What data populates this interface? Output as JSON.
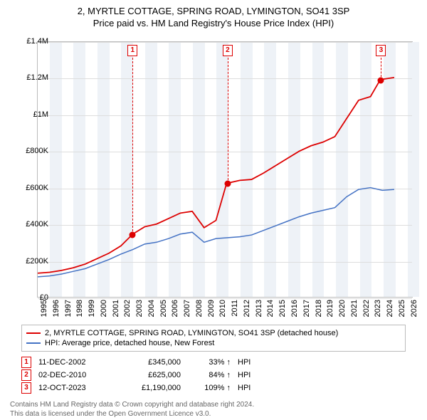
{
  "title": {
    "line1": "2, MYRTLE COTTAGE, SPRING ROAD, LYMINGTON, SO41 3SP",
    "line2": "Price paid vs. HM Land Registry's House Price Index (HPI)",
    "fontsize": 13,
    "color": "#000000"
  },
  "chart": {
    "type": "line",
    "background_color": "#ffffff",
    "band_color": "#eef2f7",
    "grid_color": "#dddddd",
    "border_color": "#bbbbbb",
    "xlim": [
      1995,
      2026.5
    ],
    "ylim": [
      0,
      1400000
    ],
    "yticks": [
      0,
      200000,
      400000,
      600000,
      800000,
      1000000,
      1200000,
      1400000
    ],
    "ytick_labels": [
      "£0",
      "£200K",
      "£400K",
      "£600K",
      "£800K",
      "£1M",
      "£1.2M",
      "£1.4M"
    ],
    "xticks": [
      1995,
      1996,
      1997,
      1998,
      1999,
      2000,
      2001,
      2002,
      2003,
      2004,
      2005,
      2006,
      2007,
      2008,
      2009,
      2010,
      2011,
      2012,
      2013,
      2014,
      2015,
      2016,
      2017,
      2018,
      2019,
      2020,
      2021,
      2022,
      2023,
      2024,
      2025,
      2026
    ],
    "label_fontsize": 11,
    "series": [
      {
        "name": "property",
        "label": "2, MYRTLE COTTAGE, SPRING ROAD, LYMINGTON, SO41 3SP (detached house)",
        "color": "#dd0000",
        "line_width": 1.8,
        "x": [
          1995,
          1996,
          1997,
          1998,
          1999,
          2000,
          2001,
          2002,
          2003,
          2004,
          2005,
          2006,
          2007,
          2008,
          2009,
          2010,
          2010.9,
          2011,
          2012,
          2013,
          2014,
          2015,
          2016,
          2017,
          2018,
          2019,
          2020,
          2021,
          2022,
          2023,
          2023.8,
          2024,
          2025
        ],
        "y": [
          130000,
          135000,
          145000,
          160000,
          180000,
          210000,
          240000,
          280000,
          345000,
          385000,
          400000,
          430000,
          460000,
          470000,
          380000,
          420000,
          625000,
          625000,
          640000,
          645000,
          680000,
          720000,
          760000,
          800000,
          830000,
          850000,
          880000,
          980000,
          1080000,
          1100000,
          1190000,
          1195000,
          1205000
        ]
      },
      {
        "name": "hpi",
        "label": "HPI: Average price, detached house, New Forest",
        "color": "#4472c4",
        "line_width": 1.5,
        "x": [
          1995,
          1996,
          1997,
          1998,
          1999,
          2000,
          2001,
          2002,
          2003,
          2004,
          2005,
          2006,
          2007,
          2008,
          2009,
          2010,
          2011,
          2012,
          2013,
          2014,
          2015,
          2016,
          2017,
          2018,
          2019,
          2020,
          2021,
          2022,
          2023,
          2024,
          2025
        ],
        "y": [
          110000,
          115000,
          125000,
          140000,
          155000,
          180000,
          205000,
          235000,
          260000,
          290000,
          300000,
          320000,
          345000,
          355000,
          300000,
          320000,
          325000,
          330000,
          340000,
          365000,
          390000,
          415000,
          440000,
          460000,
          475000,
          490000,
          550000,
          590000,
          600000,
          585000,
          590000
        ]
      }
    ],
    "sale_markers": [
      {
        "n": "1",
        "date": "11-DEC-2002",
        "x": 2002.95,
        "y": 345000,
        "price_label": "£345,000",
        "pct_label": "33% ↑ HPI"
      },
      {
        "n": "2",
        "date": "02-DEC-2010",
        "x": 2010.92,
        "y": 625000,
        "price_label": "£625,000",
        "pct_label": "84% ↑ HPI"
      },
      {
        "n": "3",
        "date": "12-OCT-2023",
        "x": 2023.78,
        "y": 1190000,
        "price_label": "£1,190,000",
        "pct_label": "109% ↑ HPI"
      }
    ],
    "marker_box_border": "#dd0000",
    "marker_box_text_color": "#dd0000"
  },
  "legend": {
    "items": [
      {
        "color": "#dd0000",
        "label": "2, MYRTLE COTTAGE, SPRING ROAD, LYMINGTON, SO41 3SP (detached house)"
      },
      {
        "color": "#4472c4",
        "label": "HPI: Average price, detached house, New Forest"
      }
    ]
  },
  "sales_table": {
    "hpi_suffix": "HPI",
    "rows": [
      {
        "n": "1",
        "date": "11-DEC-2002",
        "price": "£345,000",
        "pct": "33% ↑"
      },
      {
        "n": "2",
        "date": "02-DEC-2010",
        "price": "£625,000",
        "pct": "84% ↑"
      },
      {
        "n": "3",
        "date": "12-OCT-2023",
        "price": "£1,190,000",
        "pct": "109% ↑"
      }
    ]
  },
  "footer": {
    "line1": "Contains HM Land Registry data © Crown copyright and database right 2024.",
    "line2": "This data is licensed under the Open Government Licence v3.0.",
    "color": "#666666",
    "fontsize": 10
  }
}
